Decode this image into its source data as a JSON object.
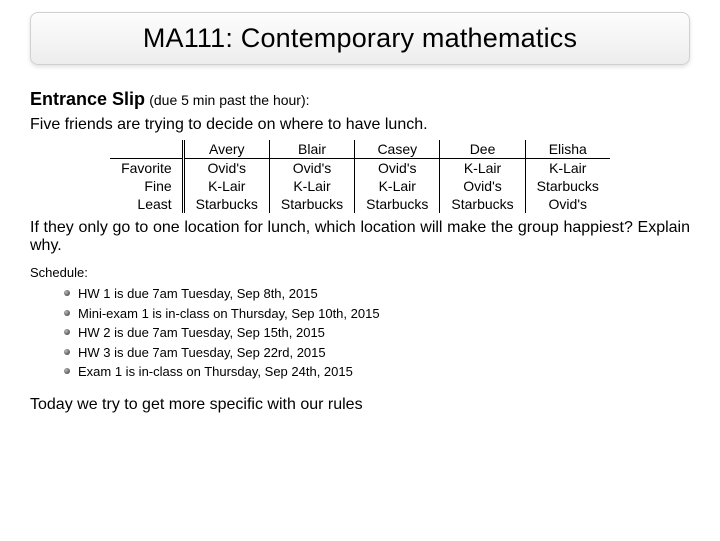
{
  "title": "MA111: Contemporary mathematics",
  "entrance": {
    "bold": "Entrance Slip",
    "paren": "(due 5 min past the hour):",
    "intro": "Five friends are trying to decide on where to have lunch."
  },
  "prefs": {
    "columns": [
      "Avery",
      "Blair",
      "Casey",
      "Dee",
      "Elisha"
    ],
    "rows": [
      {
        "label": "Favorite",
        "cells": [
          "Ovid's",
          "Ovid's",
          "Ovid's",
          "K-Lair",
          "K-Lair"
        ]
      },
      {
        "label": "Fine",
        "cells": [
          "K-Lair",
          "K-Lair",
          "K-Lair",
          "Ovid's",
          "Starbucks"
        ]
      },
      {
        "label": "Least",
        "cells": [
          "Starbucks",
          "Starbucks",
          "Starbucks",
          "Starbucks",
          "Ovid's"
        ]
      }
    ]
  },
  "question": "If they only go to one location for lunch, which location will make the group happiest? Explain why.",
  "schedule_label": "Schedule:",
  "schedule": [
    "HW 1 is due 7am Tuesday, Sep 8th, 2015",
    "Mini-exam 1 is in-class on Thursday, Sep 10th, 2015",
    "HW 2 is due 7am Tuesday, Sep 15th, 2015",
    "HW 3 is due 7am Tuesday, Sep 22rd, 2015",
    "Exam 1 is in-class on Thursday, Sep 24th, 2015"
  ],
  "closing": "Today we try to get more specific with our rules"
}
